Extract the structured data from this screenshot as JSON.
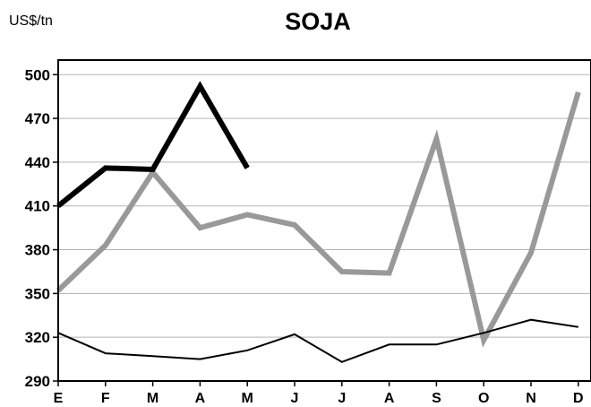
{
  "chart_data": {
    "type": "line",
    "title": "SOJA",
    "unit_label": "US$/tn",
    "xlabel": "",
    "ylabel": "",
    "categories": [
      "E",
      "F",
      "M",
      "A",
      "M",
      "J",
      "J",
      "A",
      "S",
      "O",
      "N",
      "D"
    ],
    "y_ticks": [
      290,
      320,
      350,
      380,
      410,
      440,
      470,
      500
    ],
    "ylim": [
      290,
      510
    ],
    "grid": "horizontal",
    "legend": "none",
    "series": [
      {
        "color": "#000000",
        "style": "thick",
        "values": [
          410,
          436,
          435,
          492,
          436,
          null,
          null,
          null,
          null,
          null,
          null,
          null
        ]
      },
      {
        "color": "#999999",
        "style": "thick",
        "values": [
          352,
          383,
          433,
          395,
          404,
          397,
          365,
          364,
          456,
          318,
          378,
          488
        ]
      },
      {
        "color": "#000000",
        "style": "thin",
        "values": [
          323,
          309,
          307,
          305,
          311,
          322,
          303,
          315,
          315,
          323,
          332,
          327
        ]
      }
    ]
  }
}
